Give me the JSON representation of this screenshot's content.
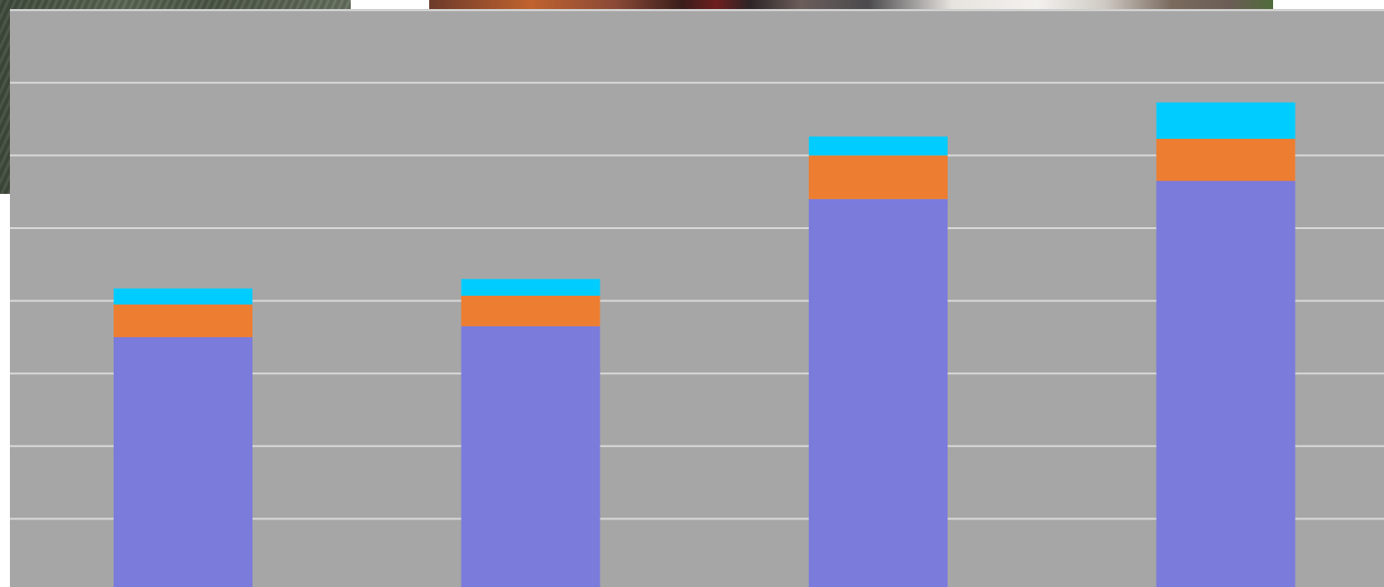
{
  "background": {
    "plot_color": "#a6a6a6",
    "grid_color": "#d9d9d9"
  },
  "chart_data": {
    "type": "bar",
    "stacked": true,
    "categories": [
      "",
      "",
      "",
      ""
    ],
    "series": [
      {
        "values": [
          35,
          36.5,
          54,
          56.5
        ],
        "color": "#7b7bdc"
      },
      {
        "values": [
          4.5,
          4.2,
          6,
          5.8
        ],
        "color": "#ed7d31"
      },
      {
        "values": [
          2.2,
          2.3,
          2.6,
          5
        ],
        "color": "#00ccff"
      }
    ],
    "title": "",
    "xlabel": "",
    "ylabel": "",
    "ylim": [
      0,
      80
    ],
    "grid": true,
    "legend": "none"
  }
}
